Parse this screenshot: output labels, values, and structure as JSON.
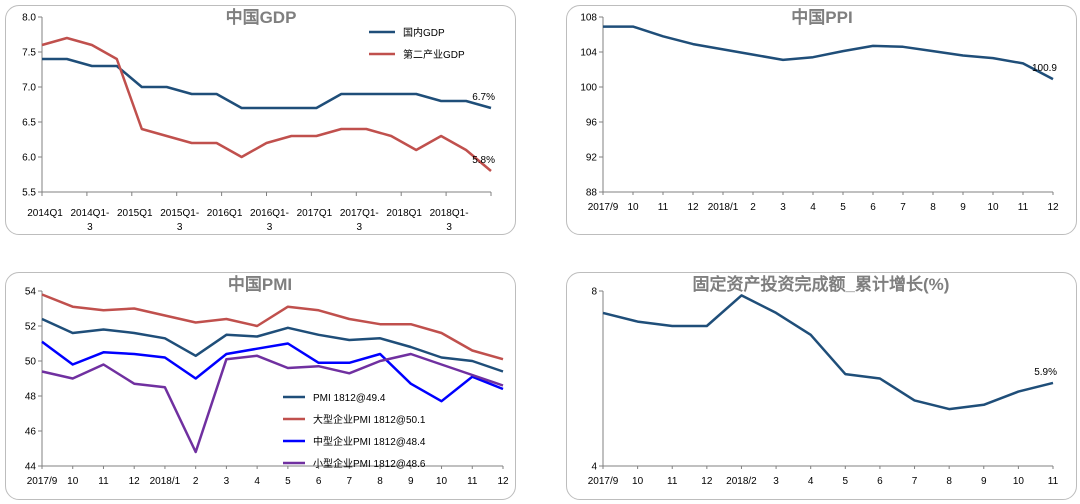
{
  "chart_data": [
    {
      "id": "gdp",
      "type": "line",
      "title": "中国GDP",
      "ylim": [
        5.5,
        8.0
      ],
      "yticks": [
        "5.5",
        "6.0",
        "6.5",
        "7.0",
        "7.5",
        "8.0"
      ],
      "ytick_values": [
        5.5,
        6.0,
        6.5,
        7.0,
        7.5,
        8.0
      ],
      "x_tick_labels": [
        {
          "lines": [
            "2014Q1"
          ]
        },
        {
          "lines": [
            "2014Q1-",
            "3"
          ]
        },
        {
          "lines": [
            "2015Q1"
          ]
        },
        {
          "lines": [
            "2015Q1-",
            "3"
          ]
        },
        {
          "lines": [
            "2016Q1"
          ]
        },
        {
          "lines": [
            "2016Q1-",
            "3"
          ]
        },
        {
          "lines": [
            "2017Q1"
          ]
        },
        {
          "lines": [
            "2017Q1-",
            "3"
          ]
        },
        {
          "lines": [
            "2018Q1"
          ]
        },
        {
          "lines": [
            "2018Q1-",
            "3"
          ]
        }
      ],
      "grid": false,
      "legend_position": "top-right",
      "series": [
        {
          "name": "国内GDP",
          "color": "#1f4e79",
          "values": [
            7.4,
            7.4,
            7.3,
            7.3,
            7.0,
            7.0,
            6.9,
            6.9,
            6.7,
            6.7,
            6.7,
            6.7,
            6.9,
            6.9,
            6.9,
            6.9,
            6.8,
            6.8,
            6.7
          ]
        },
        {
          "name": "第二产业GDP",
          "color": "#c0504d",
          "values": [
            7.6,
            7.7,
            7.6,
            7.4,
            6.4,
            6.3,
            6.2,
            6.2,
            6.0,
            6.2,
            6.3,
            6.3,
            6.4,
            6.4,
            6.3,
            6.1,
            6.3,
            6.1,
            5.8
          ]
        }
      ],
      "annotations": [
        {
          "text": "6.7%",
          "series": 0
        },
        {
          "text": "5.8%",
          "series": 1
        }
      ]
    },
    {
      "id": "ppi",
      "type": "line",
      "title": "中国PPI",
      "ylim": [
        88,
        108
      ],
      "yticks": [
        "88",
        "92",
        "96",
        "100",
        "104",
        "108"
      ],
      "ytick_values": [
        88,
        92,
        96,
        100,
        104,
        108
      ],
      "categories": [
        "2017/9",
        "10",
        "11",
        "12",
        "2018/1",
        "2",
        "3",
        "4",
        "5",
        "6",
        "7",
        "8",
        "9",
        "10",
        "11",
        "12"
      ],
      "grid": false,
      "series": [
        {
          "color": "#1f4e79",
          "values": [
            106.9,
            106.9,
            105.8,
            104.9,
            104.3,
            103.7,
            103.1,
            103.4,
            104.1,
            104.7,
            104.6,
            104.1,
            103.6,
            103.3,
            102.7,
            100.9
          ]
        }
      ],
      "annotations": [
        {
          "text": "100.9",
          "series": 0
        }
      ]
    },
    {
      "id": "pmi",
      "type": "line",
      "title": "中国PMI",
      "ylim": [
        44,
        54
      ],
      "yticks": [
        "44",
        "46",
        "48",
        "50",
        "52",
        "54"
      ],
      "ytick_values": [
        44,
        46,
        48,
        50,
        52,
        54
      ],
      "categories": [
        "2017/9",
        "10",
        "11",
        "12",
        "2018/1",
        "2",
        "3",
        "4",
        "5",
        "6",
        "7",
        "8",
        "9",
        "10",
        "11",
        "12"
      ],
      "grid": false,
      "legend_position": "bottom-right",
      "series": [
        {
          "name": "PMI 1812@49.4",
          "color": "#1f4e79",
          "values": [
            52.4,
            51.6,
            51.8,
            51.6,
            51.3,
            50.3,
            51.5,
            51.4,
            51.9,
            51.5,
            51.2,
            51.3,
            50.8,
            50.2,
            50.0,
            49.4
          ]
        },
        {
          "name": "大型企业PMI   1812@50.1",
          "color": "#c0504d",
          "values": [
            53.8,
            53.1,
            52.9,
            53.0,
            52.6,
            52.2,
            52.4,
            52.0,
            53.1,
            52.9,
            52.4,
            52.1,
            52.1,
            51.6,
            50.6,
            50.1
          ]
        },
        {
          "name": "中型企业PMI   1812@48.4",
          "color": "#0000ff",
          "values": [
            51.1,
            49.8,
            50.5,
            50.4,
            50.2,
            49.0,
            50.4,
            50.7,
            51.0,
            49.9,
            49.9,
            50.4,
            48.7,
            47.7,
            49.1,
            48.4
          ]
        },
        {
          "name": "小型企业PMI   1812@48.6",
          "color": "#7030a0",
          "values": [
            49.4,
            49.0,
            49.8,
            48.7,
            48.5,
            44.8,
            50.1,
            50.3,
            49.6,
            49.7,
            49.3,
            50.0,
            50.4,
            49.8,
            49.2,
            48.6
          ]
        }
      ]
    },
    {
      "id": "fai",
      "type": "line",
      "title": "固定资产投资完成额_累计增长(%)",
      "ylim": [
        4,
        8
      ],
      "yticks": [
        "4",
        "8"
      ],
      "ytick_values": [
        4,
        8
      ],
      "categories": [
        "2017/9",
        "10",
        "11",
        "12",
        "2018/2",
        "3",
        "4",
        "5",
        "6",
        "7",
        "8",
        "9",
        "10",
        "11"
      ],
      "grid": false,
      "series": [
        {
          "color": "#1f4e79",
          "values": [
            7.5,
            7.3,
            7.2,
            7.2,
            7.9,
            7.5,
            7.0,
            6.1,
            6.0,
            5.5,
            5.3,
            5.4,
            5.7,
            5.9
          ]
        }
      ],
      "annotations": [
        {
          "text": "5.9%",
          "series": 0
        }
      ]
    }
  ]
}
